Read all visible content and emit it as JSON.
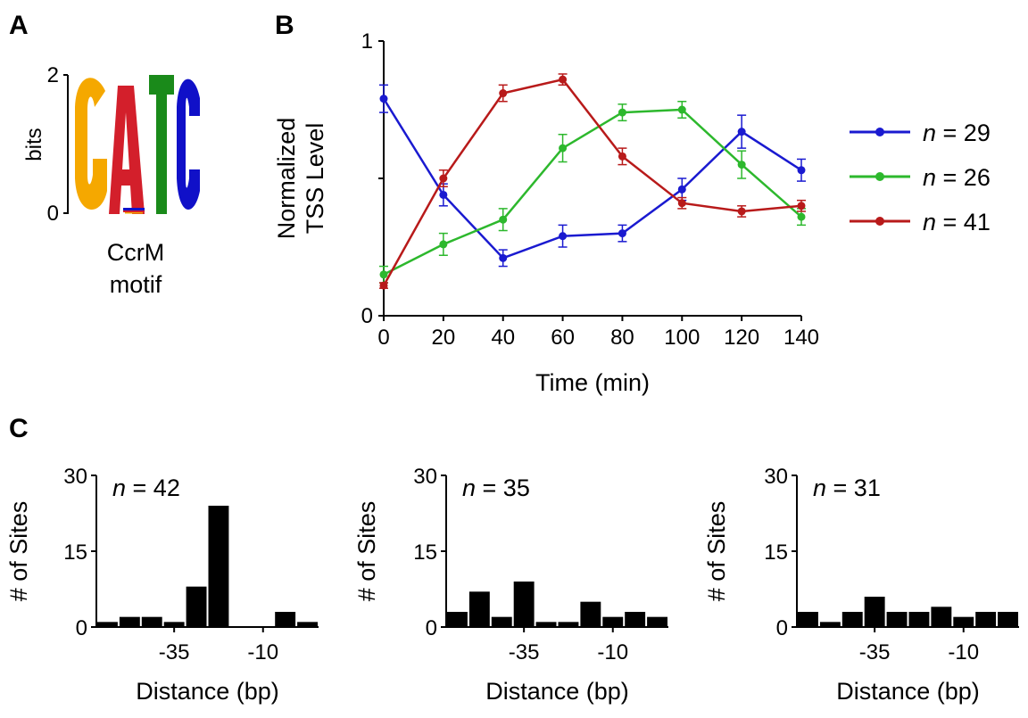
{
  "panels": {
    "a": {
      "label": "A",
      "ylabel": "bits",
      "yticks": [
        "0",
        "2"
      ],
      "caption_line1": "CcrM",
      "caption_line2": "motif",
      "logo_letters": [
        {
          "char": "G",
          "color": "#f5a800"
        },
        {
          "char": "A",
          "color": "#d31f2b"
        },
        {
          "char": "T",
          "color": "#1a8a1a"
        },
        {
          "char": "C",
          "color": "#1010c8"
        }
      ]
    },
    "b": {
      "label": "B"
    },
    "c": {
      "label": "C"
    }
  },
  "chart_data": [
    {
      "type": "line",
      "panel": "B",
      "x": [
        0,
        20,
        40,
        60,
        80,
        100,
        120,
        140
      ],
      "xlabel": "Time (min)",
      "ylabel_line1": "Normalized",
      "ylabel_line2": "TSS Level",
      "ylim": [
        0,
        1
      ],
      "yticks": [
        "0",
        "1"
      ],
      "xticks": [
        "0",
        "20",
        "40",
        "60",
        "80",
        "100",
        "120",
        "140"
      ],
      "legend_position": "right",
      "series": [
        {
          "n_label": "n",
          "name": " = 29",
          "color": "#1a1ad0",
          "values": [
            0.79,
            0.44,
            0.21,
            0.29,
            0.3,
            0.46,
            0.67,
            0.53
          ],
          "errors": [
            0.05,
            0.04,
            0.03,
            0.04,
            0.03,
            0.04,
            0.06,
            0.04
          ]
        },
        {
          "n_label": "n",
          "name": " = 26",
          "color": "#2db82d",
          "values": [
            0.15,
            0.26,
            0.35,
            0.61,
            0.74,
            0.75,
            0.55,
            0.36
          ],
          "errors": [
            0.03,
            0.04,
            0.04,
            0.05,
            0.03,
            0.03,
            0.05,
            0.03
          ]
        },
        {
          "n_label": "n",
          "name": " = 41",
          "color": "#b81a1a",
          "values": [
            0.11,
            0.5,
            0.81,
            0.86,
            0.58,
            0.41,
            0.38,
            0.4
          ],
          "errors": [
            0.01,
            0.03,
            0.03,
            0.02,
            0.03,
            0.02,
            0.02,
            0.02
          ]
        }
      ]
    },
    {
      "type": "bar",
      "panel": "C",
      "n_label": "n",
      "n_value": " = 42",
      "xlabel": "Distance (bp)",
      "ylabel": "# of Sites",
      "ylim": [
        0,
        30
      ],
      "yticks": [
        "0",
        "15",
        "30"
      ],
      "xticks": [
        "-35",
        "-10"
      ],
      "values": [
        1,
        2,
        2,
        1,
        8,
        24,
        0,
        0,
        3,
        1
      ]
    },
    {
      "type": "bar",
      "panel": "C",
      "n_label": "n",
      "n_value": " = 35",
      "xlabel": "Distance (bp)",
      "ylabel": "# of Sites",
      "ylim": [
        0,
        30
      ],
      "yticks": [
        "0",
        "15",
        "30"
      ],
      "xticks": [
        "-35",
        "-10"
      ],
      "values": [
        3,
        7,
        2,
        9,
        1,
        1,
        5,
        2,
        3,
        2
      ]
    },
    {
      "type": "bar",
      "panel": "C",
      "n_label": "n",
      "n_value": " = 31",
      "xlabel": "Distance (bp)",
      "ylabel": "# of Sites",
      "ylim": [
        0,
        30
      ],
      "yticks": [
        "0",
        "15",
        "30"
      ],
      "xticks": [
        "-35",
        "-10"
      ],
      "values": [
        3,
        1,
        3,
        6,
        3,
        3,
        4,
        2,
        3,
        3
      ]
    }
  ]
}
